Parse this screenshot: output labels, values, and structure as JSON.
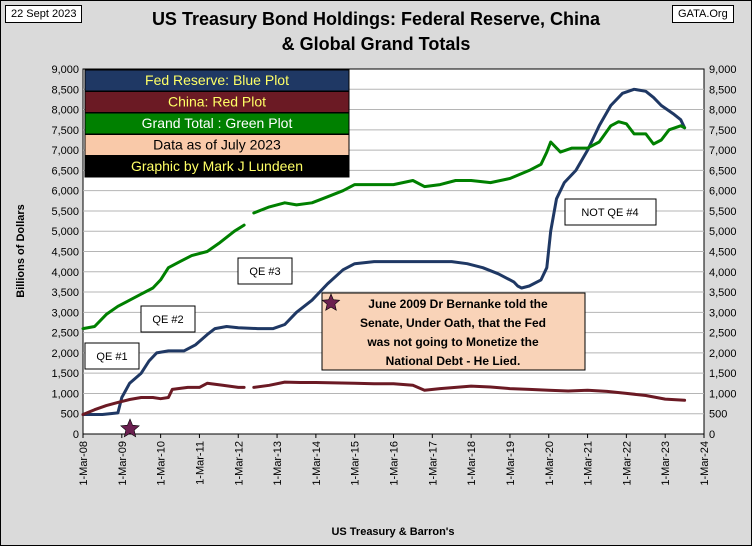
{
  "header": {
    "date": "22 Sept 2023",
    "source_tag": "GATA.Org",
    "title_line1": "US Treasury Bond Holdings: Federal Reserve, China",
    "title_line2": "& Global Grand Totals"
  },
  "chart_data": {
    "type": "line",
    "title": "US Treasury Bond Holdings: Federal Reserve, China & Global Grand Totals",
    "ylabel": "Billions of Dollars",
    "xlabel": "US Treasury  & Barron's",
    "ylim": [
      0,
      9000
    ],
    "yticks": [
      "0",
      "500",
      "1,000",
      "1,500",
      "2,000",
      "2,500",
      "3,000",
      "3,500",
      "4,000",
      "4,500",
      "5,000",
      "5,500",
      "6,000",
      "6,500",
      "7,000",
      "7,500",
      "8,000",
      "8,500",
      "9,000"
    ],
    "xlim": [
      2008.0,
      2024.0
    ],
    "xticks": [
      "1-Mar-08",
      "1-Mar-09",
      "1-Mar-10",
      "1-Mar-11",
      "1-Mar-12",
      "1-Mar-13",
      "1-Mar-14",
      "1-Mar-15",
      "1-Mar-16",
      "1-Mar-17",
      "1-Mar-18",
      "1-Mar-19",
      "1-Mar-20",
      "1-Mar-21",
      "1-Mar-22",
      "1-Mar-23",
      "1-Mar-24"
    ],
    "legend": [
      {
        "label": "Fed Reserve: Blue Plot",
        "bg": "#1f3864",
        "fg": "#ffff66"
      },
      {
        "label": "China: Red Plot",
        "bg": "#6b1a24",
        "fg": "#ffff66"
      },
      {
        "label": "Grand Total : Green Plot",
        "bg": "#008000",
        "fg": "#ffffff"
      },
      {
        "label": "Data as of July 2023",
        "bg": "#f9c9a9",
        "fg": "#000000"
      },
      {
        "label": "Graphic by Mark J Lundeen",
        "bg": "#000000",
        "fg": "#ffff66"
      }
    ],
    "series": [
      {
        "name": "Fed Reserve",
        "color": "#1f3864",
        "points": [
          [
            2008.0,
            480
          ],
          [
            2008.5,
            480
          ],
          [
            2008.9,
            520
          ],
          [
            2009.0,
            900
          ],
          [
            2009.2,
            1250
          ],
          [
            2009.5,
            1500
          ],
          [
            2009.7,
            1800
          ],
          [
            2009.9,
            2000
          ],
          [
            2010.2,
            2050
          ],
          [
            2010.6,
            2050
          ],
          [
            2010.9,
            2200
          ],
          [
            2011.2,
            2450
          ],
          [
            2011.4,
            2600
          ],
          [
            2011.7,
            2650
          ],
          [
            2012.0,
            2620
          ],
          [
            2012.5,
            2600
          ],
          [
            2012.9,
            2600
          ],
          [
            2013.2,
            2700
          ],
          [
            2013.5,
            3000
          ],
          [
            2013.9,
            3300
          ],
          [
            2014.3,
            3700
          ],
          [
            2014.7,
            4050
          ],
          [
            2015.0,
            4200
          ],
          [
            2015.5,
            4250
          ],
          [
            2016.0,
            4250
          ],
          [
            2016.5,
            4250
          ],
          [
            2017.0,
            4250
          ],
          [
            2017.5,
            4250
          ],
          [
            2017.9,
            4200
          ],
          [
            2018.3,
            4100
          ],
          [
            2018.7,
            3950
          ],
          [
            2019.1,
            3750
          ],
          [
            2019.2,
            3650
          ],
          [
            2019.3,
            3600
          ],
          [
            2019.5,
            3650
          ],
          [
            2019.8,
            3800
          ],
          [
            2019.95,
            4100
          ],
          [
            2020.05,
            5000
          ],
          [
            2020.2,
            5800
          ],
          [
            2020.4,
            6200
          ],
          [
            2020.7,
            6500
          ],
          [
            2021.0,
            7000
          ],
          [
            2021.3,
            7600
          ],
          [
            2021.6,
            8100
          ],
          [
            2021.9,
            8400
          ],
          [
            2022.2,
            8500
          ],
          [
            2022.5,
            8450
          ],
          [
            2022.7,
            8300
          ],
          [
            2022.9,
            8100
          ],
          [
            2023.2,
            7900
          ],
          [
            2023.4,
            7750
          ],
          [
            2023.5,
            7550
          ]
        ]
      },
      {
        "name": "China",
        "color": "#6b1a24",
        "points": [
          [
            2008.0,
            480
          ],
          [
            2008.3,
            600
          ],
          [
            2008.6,
            700
          ],
          [
            2008.9,
            780
          ],
          [
            2009.2,
            850
          ],
          [
            2009.5,
            900
          ],
          [
            2009.8,
            900
          ],
          [
            2010.0,
            870
          ],
          [
            2010.2,
            900
          ],
          [
            2010.3,
            1100
          ],
          [
            2010.7,
            1150
          ],
          [
            2011.0,
            1150
          ],
          [
            2011.2,
            1250
          ],
          [
            2011.6,
            1200
          ],
          [
            2012.0,
            1150
          ],
          [
            2012.15,
            1150
          ]
        ]
      },
      {
        "name": "China",
        "color": "#6b1a24",
        "points": [
          [
            2012.4,
            1150
          ],
          [
            2012.8,
            1200
          ],
          [
            2013.2,
            1280
          ],
          [
            2013.6,
            1270
          ],
          [
            2014.0,
            1270
          ],
          [
            2014.5,
            1260
          ],
          [
            2015.0,
            1250
          ],
          [
            2015.5,
            1240
          ],
          [
            2016.0,
            1240
          ],
          [
            2016.5,
            1200
          ],
          [
            2016.8,
            1080
          ],
          [
            2017.2,
            1120
          ],
          [
            2017.6,
            1150
          ],
          [
            2018.0,
            1180
          ],
          [
            2018.5,
            1160
          ],
          [
            2019.0,
            1120
          ],
          [
            2019.5,
            1100
          ],
          [
            2020.0,
            1080
          ],
          [
            2020.5,
            1060
          ],
          [
            2021.0,
            1080
          ],
          [
            2021.5,
            1050
          ],
          [
            2022.0,
            1000
          ],
          [
            2022.5,
            950
          ],
          [
            2023.0,
            860
          ],
          [
            2023.5,
            830
          ]
        ]
      },
      {
        "name": "Grand Total",
        "color": "#008000",
        "points": [
          [
            2008.0,
            2600
          ],
          [
            2008.3,
            2650
          ],
          [
            2008.6,
            2950
          ],
          [
            2008.9,
            3150
          ],
          [
            2009.2,
            3300
          ],
          [
            2009.5,
            3450
          ],
          [
            2009.8,
            3600
          ],
          [
            2010.0,
            3800
          ],
          [
            2010.2,
            4100
          ],
          [
            2010.5,
            4250
          ],
          [
            2010.8,
            4400
          ],
          [
            2011.2,
            4500
          ],
          [
            2011.5,
            4700
          ],
          [
            2011.9,
            5000
          ],
          [
            2012.15,
            5150
          ]
        ]
      },
      {
        "name": "Grand Total",
        "color": "#008000",
        "points": [
          [
            2012.4,
            5450
          ],
          [
            2012.8,
            5600
          ],
          [
            2013.2,
            5700
          ],
          [
            2013.5,
            5650
          ],
          [
            2013.9,
            5700
          ],
          [
            2014.3,
            5850
          ],
          [
            2014.7,
            6000
          ],
          [
            2015.0,
            6150
          ],
          [
            2015.5,
            6150
          ],
          [
            2016.0,
            6150
          ],
          [
            2016.5,
            6250
          ],
          [
            2016.8,
            6100
          ],
          [
            2017.2,
            6150
          ],
          [
            2017.6,
            6250
          ],
          [
            2018.0,
            6250
          ],
          [
            2018.5,
            6200
          ],
          [
            2019.0,
            6300
          ],
          [
            2019.5,
            6500
          ],
          [
            2019.8,
            6650
          ],
          [
            2019.95,
            6950
          ],
          [
            2020.05,
            7200
          ],
          [
            2020.3,
            6950
          ],
          [
            2020.6,
            7050
          ],
          [
            2021.0,
            7050
          ],
          [
            2021.3,
            7200
          ],
          [
            2021.6,
            7600
          ],
          [
            2021.8,
            7700
          ],
          [
            2022.0,
            7650
          ],
          [
            2022.2,
            7400
          ],
          [
            2022.5,
            7400
          ],
          [
            2022.7,
            7150
          ],
          [
            2022.9,
            7250
          ],
          [
            2023.1,
            7500
          ],
          [
            2023.4,
            7600
          ],
          [
            2023.5,
            7550
          ]
        ]
      }
    ],
    "annotations": {
      "qe1": "QE #1",
      "qe2": "QE #2",
      "qe3": "QE #3",
      "not_qe4": "NOT QE #4",
      "bernanke_line1": "June 2009 Dr Bernanke told the",
      "bernanke_line2": "Senate, Under Oath, that the Fed",
      "bernanke_line3": "was not going to Monetize the",
      "bernanke_line4": "National Debt - He Lied.",
      "star_icon": "star-icon"
    }
  }
}
